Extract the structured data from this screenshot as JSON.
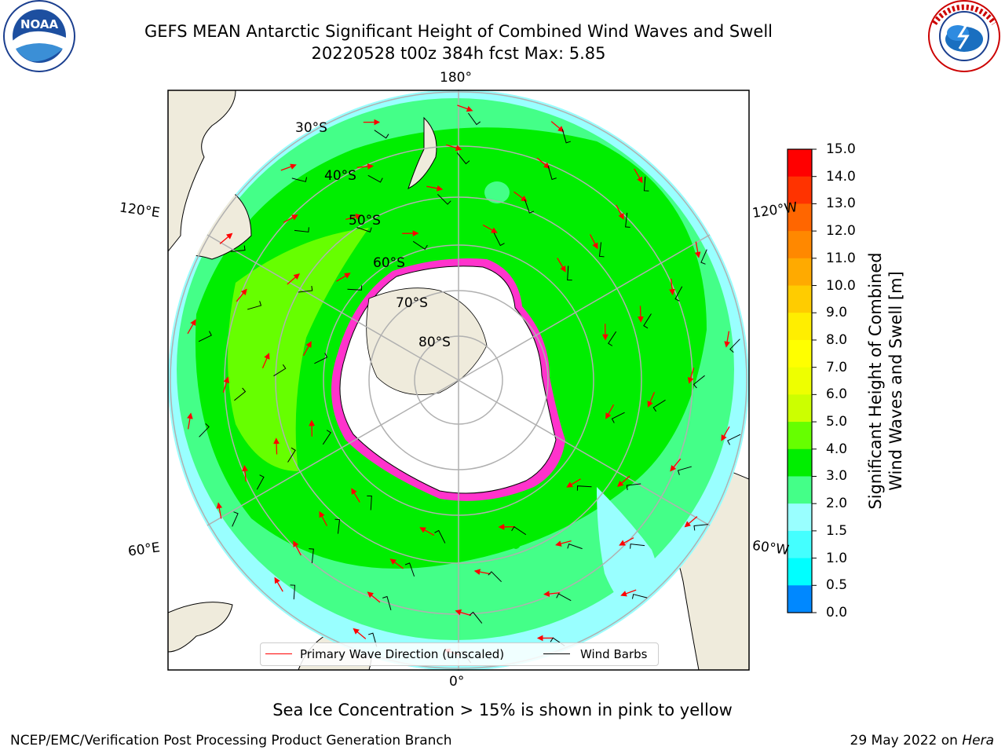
{
  "header": {
    "title_line1": "GEFS MEAN Antarctic Significant Height of Combined Wind Waves and Swell",
    "title_line2": "20220528 t00z 384h fcst   Max: 5.85"
  },
  "logos": {
    "left": {
      "text": "NOAA",
      "ring_text": "NATIONAL OCEANIC AND ATMOSPHERIC ADMINISTRATION · U.S. DEPARTMENT OF COMMERCE"
    },
    "right": {
      "ring_text": "NATIONAL WEATHER SERVICE"
    }
  },
  "map": {
    "projection": "south-polar-stereographic",
    "longitude_labels": {
      "top": "180°",
      "bottom": "0°",
      "left_upper": "120°E",
      "left_lower": "60°E",
      "right_upper": "120°W",
      "right_lower": "60°W"
    },
    "latitude_labels": [
      "30°S",
      "40°S",
      "50°S",
      "60°S",
      "70°S",
      "80°S"
    ],
    "colors": {
      "land": "#efebdc",
      "ice_sheet": "#ffffff",
      "grid": "#b0b0b0",
      "coast": "#000000",
      "sea_ice": "#ff33cc"
    }
  },
  "legend": {
    "primary_wave_label": "Primary Wave Direction (unscaled)",
    "wind_barbs_label": "Wind Barbs",
    "primary_wave_color": "#ff0000",
    "wind_barbs_color": "#000000"
  },
  "colorbar": {
    "label_line1": "Significant Height of Combined",
    "label_line2": "Wind Waves and Swell [m]",
    "ticks": [
      "15.0",
      "14.0",
      "13.0",
      "12.0",
      "11.0",
      "10.0",
      "9.0",
      "8.0",
      "7.0",
      "6.0",
      "5.0",
      "4.0",
      "3.0",
      "2.0",
      "1.5",
      "1.0",
      "0.5",
      "0.0"
    ],
    "colors_top_to_bottom": [
      "#ff0000",
      "#ff3300",
      "#ff6600",
      "#ff8800",
      "#ffaa00",
      "#ffcc00",
      "#ffee00",
      "#ffff00",
      "#eeff00",
      "#ccff00",
      "#66ff00",
      "#00ee00",
      "#44ff88",
      "#99ffff",
      "#44ffff",
      "#00ffff",
      "#0088ff",
      "#0000ff"
    ]
  },
  "subtitle": "Sea Ice Concentration > 15% is shown in pink to yellow",
  "footer": {
    "left": "NCEP/EMC/Verification Post Processing Product Generation Branch",
    "right_prefix": "29 May 2022 on ",
    "right_host": "Hera"
  }
}
